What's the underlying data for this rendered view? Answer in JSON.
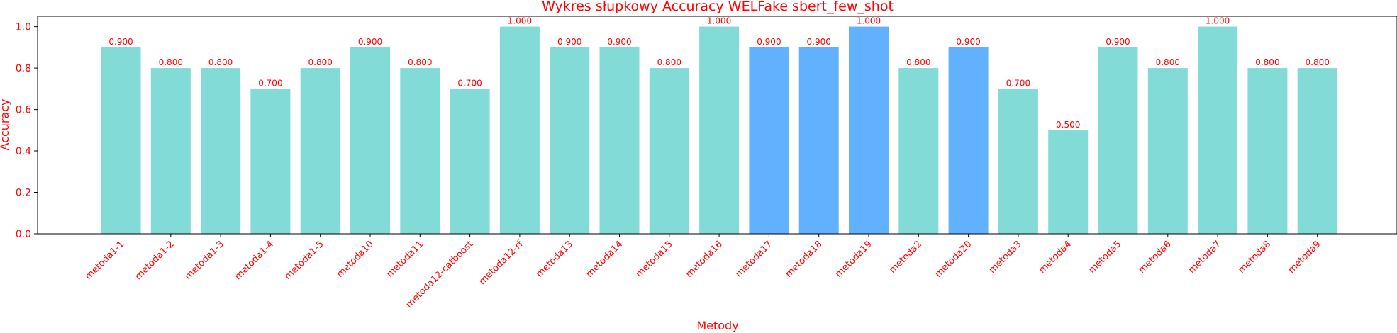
{
  "chart_data": {
    "type": "bar",
    "title": "Wykres słupkowy Accuracy WELFake sbert_few_shot",
    "xlabel": "Metody",
    "ylabel": "Accuracy",
    "ylim": [
      0,
      1.05
    ],
    "yticks": [
      "0.0",
      "0.2",
      "0.4",
      "0.6",
      "0.8",
      "1.0"
    ],
    "grid": false,
    "label_color": "#ff0000",
    "colors": {
      "default": "#82dbd6",
      "highlight": "#61b1ff"
    },
    "categories": [
      "metoda1-1",
      "metoda1-2",
      "metoda1-3",
      "metoda1-4",
      "metoda1-5",
      "metoda10",
      "metoda11",
      "metoda12-catboost",
      "metoda12-rf",
      "metoda13",
      "metoda14",
      "metoda15",
      "metoda16",
      "metoda17",
      "metoda18",
      "metoda19",
      "metoda2",
      "metoda20",
      "metoda3",
      "metoda4",
      "metoda5",
      "metoda6",
      "metoda7",
      "metoda8",
      "metoda9"
    ],
    "values": [
      0.9,
      0.8,
      0.8,
      0.7,
      0.8,
      0.9,
      0.8,
      0.7,
      1.0,
      0.9,
      0.9,
      0.8,
      1.0,
      0.9,
      0.9,
      1.0,
      0.8,
      0.9,
      0.7,
      0.5,
      0.9,
      0.8,
      1.0,
      0.8,
      0.8
    ],
    "value_labels": [
      "0.900",
      "0.800",
      "0.800",
      "0.700",
      "0.800",
      "0.900",
      "0.800",
      "0.700",
      "1.000",
      "0.900",
      "0.900",
      "0.800",
      "1.000",
      "0.900",
      "0.900",
      "1.000",
      "0.800",
      "0.900",
      "0.700",
      "0.500",
      "0.900",
      "0.800",
      "1.000",
      "0.800",
      "0.800"
    ],
    "highlighted": [
      "metoda17",
      "metoda18",
      "metoda19",
      "metoda20"
    ]
  }
}
